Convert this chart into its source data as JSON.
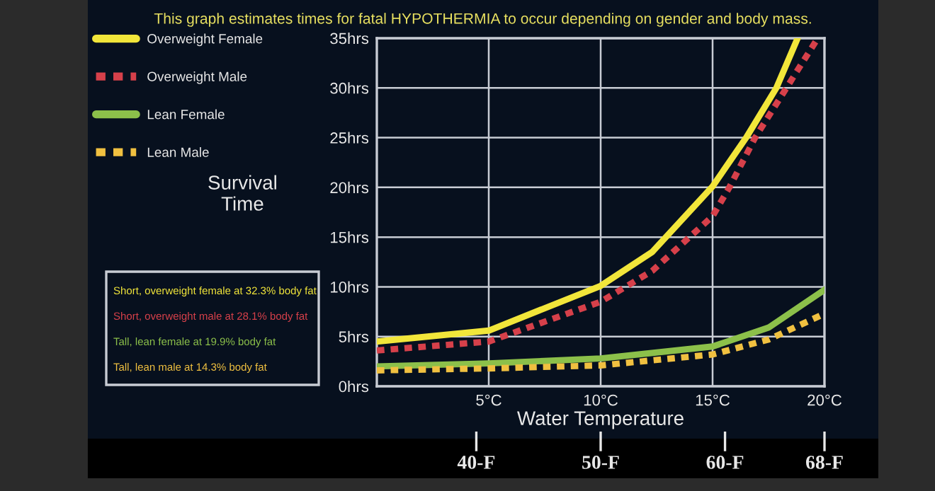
{
  "chart_data": {
    "type": "line",
    "title": "This graph estimates times for fatal HYPOTHERMIA to occur depending on gender and body mass.",
    "xlabel": "Water Temperature",
    "ylabel": "Survival\nTime",
    "x": [
      0,
      5,
      10,
      12.3,
      15,
      16.5,
      17.85,
      18.8
    ],
    "series": [
      {
        "name": "Overweight Female",
        "color": "#f2e63a",
        "line_style": "solid",
        "values": [
          4.5,
          5.6,
          10.1,
          13.5,
          20.1,
          25,
          30,
          35
        ]
      },
      {
        "name": "Overweight Male",
        "color": "#d6404a",
        "line_style": "dashed",
        "x": [
          0,
          5,
          10,
          12.3,
          15,
          15.75,
          16.9,
          18.3,
          19.7
        ],
        "values": [
          3.6,
          4.5,
          8.5,
          11.6,
          17.1,
          20,
          25,
          30,
          35
        ]
      },
      {
        "name": "Lean Female",
        "color": "#8cc04a",
        "line_style": "solid",
        "x": [
          0,
          5,
          10,
          15,
          17.5,
          20
        ],
        "values": [
          2.0,
          2.3,
          2.8,
          4.0,
          5.9,
          9.7
        ]
      },
      {
        "name": "Lean Male",
        "color": "#f0c040",
        "line_style": "dashed",
        "x": [
          0,
          5,
          10,
          15,
          17.5,
          20
        ],
        "values": [
          1.6,
          1.8,
          2.1,
          3.2,
          4.7,
          7.3
        ]
      }
    ],
    "xlim": [
      0,
      20
    ],
    "xticks": [
      {
        "value": 5,
        "label": "5°C"
      },
      {
        "value": 10,
        "label": "10°C"
      },
      {
        "value": 15,
        "label": "15°C"
      },
      {
        "value": 20,
        "label": "20°C"
      }
    ],
    "x2lim": [
      32,
      68
    ],
    "x2ticks": [
      {
        "value": 40,
        "label": "40-F"
      },
      {
        "value": 50,
        "label": "50-F"
      },
      {
        "value": 60,
        "label": "60-F"
      },
      {
        "value": 68,
        "label": "68-F"
      }
    ],
    "ylim": [
      0,
      35
    ],
    "yticks": [
      {
        "value": 0,
        "label": "0hrs"
      },
      {
        "value": 5,
        "label": "5hrs"
      },
      {
        "value": 10,
        "label": "10hrs"
      },
      {
        "value": 15,
        "label": "15hrs"
      },
      {
        "value": 20,
        "label": "20hrs"
      },
      {
        "value": 25,
        "label": "25hrs"
      },
      {
        "value": 30,
        "label": "30hrs"
      },
      {
        "value": 35,
        "label": "35hrs"
      }
    ],
    "grid": true,
    "legend": "top left",
    "marker": "none",
    "annotations": [
      "Short, overweight female at 32.3% body fat",
      "Short, overweight male at 28.1% body fat",
      "Tall, lean female at 19.9% body fat",
      "Tall, lean male at 14.3% body fat"
    ]
  }
}
